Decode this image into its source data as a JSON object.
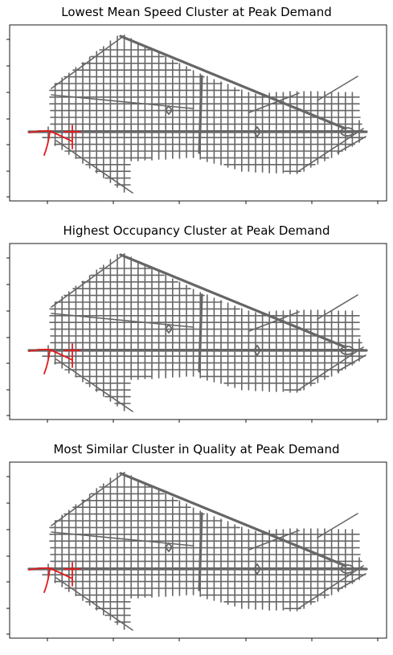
{
  "chart_data": [
    {
      "type": "network_map",
      "title": "Lowest Mean Speed Cluster at Peak Demand",
      "network_color": "#666666",
      "highlight_color": "#e41a1c",
      "axis_tick_labels_shown": false
    },
    {
      "type": "network_map",
      "title": "Highest Occupancy Cluster at Peak Demand",
      "network_color": "#666666",
      "highlight_color": "#e41a1c",
      "axis_tick_labels_shown": false
    },
    {
      "type": "network_map",
      "title": "Most Similar Cluster in Quality at Peak Demand",
      "network_color": "#666666",
      "highlight_color": "#e41a1c",
      "axis_tick_labels_shown": false
    }
  ]
}
